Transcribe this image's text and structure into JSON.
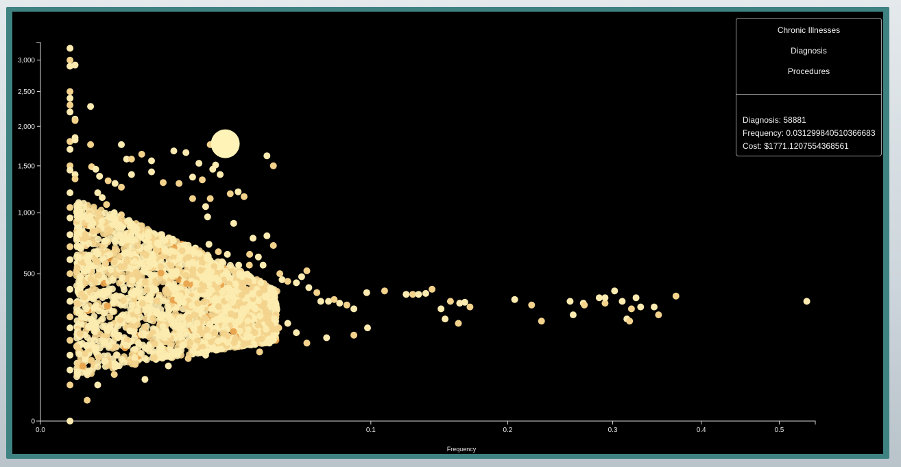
{
  "menu": {
    "items": [
      "Chronic Illnesses",
      "Diagnosis",
      "Procedures"
    ]
  },
  "info": {
    "diagnosis": "Diagnosis: 58881",
    "frequency": "Frequency: 0.031299840510366683",
    "cost": "Cost: $1771.1207554368561"
  },
  "colors": {
    "background": "#000000",
    "frame": "#3f8282",
    "point_light": "#fcebb0",
    "point_mid": "#f3d28c",
    "point_dark": "#e8a24a",
    "highlight": "#fff3b8"
  },
  "chart_data": {
    "type": "scatter",
    "title": "",
    "xlabel": "Frequency",
    "ylabel": "",
    "x_scale": "sqrt",
    "y_scale": "sqrt",
    "xlim": [
      0,
      0.55
    ],
    "ylim": [
      0,
      3300
    ],
    "x_ticks": [
      0.0,
      0.1,
      0.2,
      0.3,
      0.4,
      0.5
    ],
    "x_tick_labels": [
      "0.0",
      "0.1",
      "0.2",
      "0.3",
      "0.4",
      "0.5"
    ],
    "y_ticks": [
      0,
      500,
      1000,
      1500,
      2000,
      2500,
      3000
    ],
    "y_tick_labels": [
      "0",
      "500",
      "1,000",
      "1,500",
      "2,000",
      "2,500",
      "3,000"
    ],
    "highlighted_point": {
      "x": 0.0313,
      "y": 1771.12,
      "label": "58881"
    },
    "series": [
      {
        "values": [
          [
            0.0008,
            3200
          ],
          [
            0.0008,
            3000
          ],
          [
            0.0008,
            2900
          ],
          [
            0.0011,
            2920
          ],
          [
            0.0008,
            2500
          ],
          [
            0.0008,
            2400
          ],
          [
            0.0008,
            2300
          ],
          [
            0.0008,
            2200
          ],
          [
            0.0011,
            2100
          ],
          [
            0.0011,
            2080
          ],
          [
            0.0023,
            2280
          ],
          [
            0.0008,
            1800
          ],
          [
            0.0011,
            1850
          ],
          [
            0.0011,
            1820
          ],
          [
            0.0023,
            1760
          ],
          [
            0.0008,
            1700
          ],
          [
            0.0008,
            1500
          ],
          [
            0.0008,
            1450
          ],
          [
            0.0011,
            1400
          ],
          [
            0.0011,
            1350
          ],
          [
            0.0008,
            1200
          ],
          [
            0.0008,
            1050
          ],
          [
            0.0008,
            950
          ],
          [
            0.0008,
            800
          ],
          [
            0.0008,
            700
          ],
          [
            0.0008,
            600
          ],
          [
            0.0008,
            500
          ],
          [
            0.0008,
            400
          ],
          [
            0.0008,
            330
          ],
          [
            0.0008,
            250
          ],
          [
            0.0008,
            200
          ],
          [
            0.0008,
            150
          ],
          [
            0.0008,
            100
          ],
          [
            0.0008,
            60
          ],
          [
            0.0008,
            30
          ],
          [
            0.0008,
            0
          ],
          [
            0.0024,
            1490
          ],
          [
            0.0028,
            1460
          ],
          [
            0.0032,
            1380
          ],
          [
            0.0042,
            1330
          ],
          [
            0.0051,
            1300
          ],
          [
            0.006,
            1260
          ],
          [
            0.006,
            1760
          ],
          [
            0.0068,
            1580
          ],
          [
            0.0076,
            1580
          ],
          [
            0.0076,
            1400
          ],
          [
            0.0094,
            1640
          ],
          [
            0.0113,
            1560
          ],
          [
            0.0113,
            1430
          ],
          [
            0.0138,
            1310
          ],
          [
            0.0163,
            1680
          ],
          [
            0.0176,
            1300
          ],
          [
            0.0194,
            1660
          ],
          [
            0.0212,
            1370
          ],
          [
            0.0212,
            1140
          ],
          [
            0.023,
            1530
          ],
          [
            0.024,
            1340
          ],
          [
            0.025,
            1060
          ],
          [
            0.0256,
            960
          ],
          [
            0.0264,
            1140
          ],
          [
            0.0272,
            1460
          ],
          [
            0.0264,
            1760
          ],
          [
            0.0281,
            1510
          ],
          [
            0.0296,
            1400
          ],
          [
            0.033,
            1190
          ],
          [
            0.0342,
            900
          ],
          [
            0.038,
            1160
          ],
          [
            0.0358,
            1210
          ],
          [
            0.047,
            1620
          ],
          [
            0.0497,
            1500
          ],
          [
            0.0414,
            770
          ],
          [
            0.0401,
            640
          ],
          [
            0.0435,
            620
          ],
          [
            0.047,
            790
          ],
          [
            0.0497,
            710
          ],
          [
            0.0454,
            560
          ],
          [
            0.04,
            560
          ],
          [
            0.036,
            560
          ],
          [
            0.032,
            640
          ],
          [
            0.029,
            660
          ],
          [
            0.026,
            720
          ],
          [
            0.024,
            560
          ],
          [
            0.022,
            690
          ],
          [
            0.02,
            640
          ],
          [
            0.018,
            620
          ],
          [
            0.016,
            600
          ],
          [
            0.014,
            630
          ],
          [
            0.013,
            700
          ],
          [
            0.012,
            650
          ],
          [
            0.011,
            720
          ],
          [
            0.01,
            760
          ],
          [
            0.009,
            820
          ],
          [
            0.008,
            880
          ],
          [
            0.007,
            920
          ],
          [
            0.006,
            980
          ],
          [
            0.005,
            1000
          ],
          [
            0.004,
            1080
          ],
          [
            0.0035,
            1150
          ],
          [
            0.003,
            1200
          ],
          [
            0.0525,
            500
          ],
          [
            0.0535,
            460
          ],
          [
            0.056,
            450
          ],
          [
            0.06,
            440
          ],
          [
            0.0625,
            480
          ],
          [
            0.065,
            520
          ],
          [
            0.066,
            410
          ],
          [
            0.07,
            380
          ],
          [
            0.072,
            330
          ],
          [
            0.076,
            330
          ],
          [
            0.079,
            340
          ],
          [
            0.082,
            320
          ],
          [
            0.086,
            310
          ],
          [
            0.09,
            290
          ],
          [
            0.0975,
            380
          ],
          [
            0.1085,
            390
          ],
          [
            0.1225,
            370
          ],
          [
            0.127,
            370
          ],
          [
            0.131,
            370
          ],
          [
            0.136,
            375
          ],
          [
            0.1405,
            400
          ],
          [
            0.147,
            290
          ],
          [
            0.154,
            330
          ],
          [
            0.161,
            320
          ],
          [
            0.165,
            325
          ],
          [
            0.169,
            300
          ],
          [
            0.206,
            340
          ],
          [
            0.221,
            310
          ],
          [
            0.257,
            330
          ],
          [
            0.27,
            320
          ],
          [
            0.271,
            310
          ],
          [
            0.286,
            350
          ],
          [
            0.292,
            320
          ],
          [
            0.302,
            390
          ],
          [
            0.315,
            240
          ],
          [
            0.318,
            230
          ],
          [
            0.292,
            350
          ],
          [
            0.32,
            290
          ],
          [
            0.33,
            300
          ],
          [
            0.345,
            300
          ],
          [
            0.35,
            260
          ],
          [
            0.31,
            330
          ],
          [
            0.23,
            230
          ],
          [
            0.26,
            260
          ],
          [
            0.15,
            240
          ],
          [
            0.16,
            220
          ],
          [
            0.325,
            350
          ],
          [
            0.37,
            360
          ],
          [
            0.538,
            330
          ],
          [
            0.098,
            200
          ],
          [
            0.09,
            170
          ],
          [
            0.075,
            160
          ],
          [
            0.065,
            140
          ],
          [
            0.06,
            180
          ],
          [
            0.056,
            220
          ],
          [
            0.052,
            200
          ],
          [
            0.048,
            140
          ],
          [
            0.044,
            110
          ],
          [
            0.04,
            150
          ],
          [
            0.035,
            200
          ],
          [
            0.03,
            120
          ],
          [
            0.025,
            100
          ],
          [
            0.02,
            90
          ],
          [
            0.015,
            70
          ],
          [
            0.01,
            40
          ],
          [
            0.005,
            50
          ],
          [
            0.003,
            30
          ],
          [
            0.002,
            10
          ]
        ]
      }
    ]
  }
}
